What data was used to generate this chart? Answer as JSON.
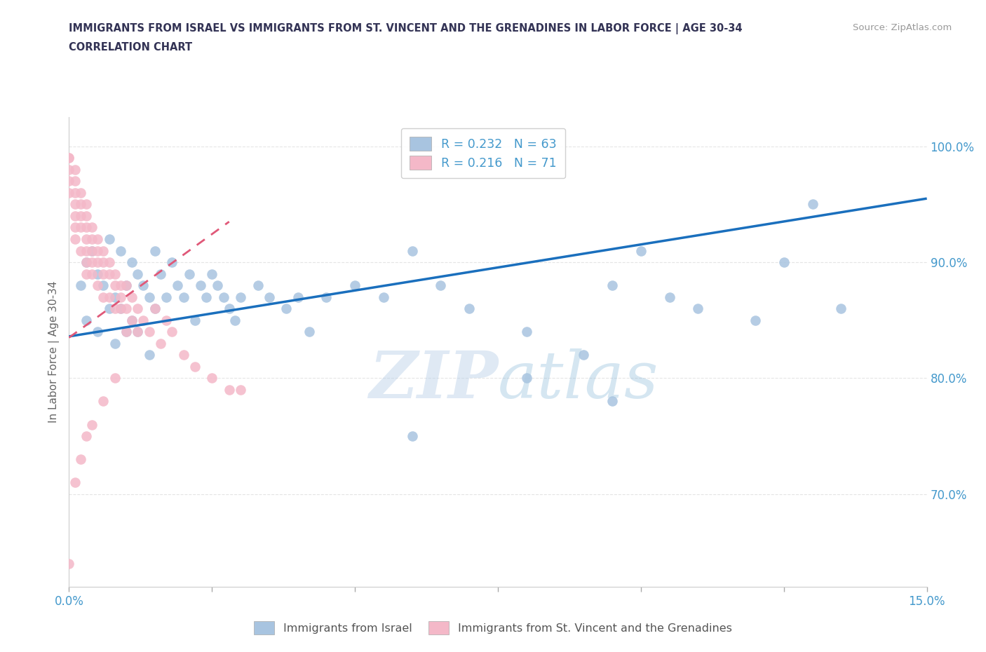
{
  "title_line1": "IMMIGRANTS FROM ISRAEL VS IMMIGRANTS FROM ST. VINCENT AND THE GRENADINES IN LABOR FORCE | AGE 30-34",
  "title_line2": "CORRELATION CHART",
  "source_text": "Source: ZipAtlas.com",
  "ylabel": "In Labor Force | Age 30-34",
  "xmin": 0.0,
  "xmax": 0.15,
  "ymin": 0.62,
  "ymax": 1.025,
  "yticks": [
    0.7,
    0.8,
    0.9,
    1.0
  ],
  "ytick_labels": [
    "70.0%",
    "80.0%",
    "90.0%",
    "100.0%"
  ],
  "legend_R1": "R = 0.232",
  "legend_N1": "N = 63",
  "legend_R2": "R = 0.216",
  "legend_N2": "N = 71",
  "color_israel": "#a8c4e0",
  "color_stvincent": "#f4b8c8",
  "trendline_israel_color": "#1a6fbd",
  "trendline_stvincent_color": "#e05878",
  "watermark_ZIP": "ZIP",
  "watermark_atlas": "atlas",
  "title_color": "#333355",
  "axis_color": "#4499cc",
  "israel_trendline_x0": 0.0,
  "israel_trendline_y0": 0.836,
  "israel_trendline_x1": 0.15,
  "israel_trendline_y1": 0.955,
  "stvincent_trendline_x0": 0.0,
  "stvincent_trendline_y0": 0.835,
  "stvincent_trendline_x1": 0.028,
  "stvincent_trendline_y1": 0.935,
  "scatter_israel_x": [
    0.002,
    0.003,
    0.003,
    0.004,
    0.005,
    0.005,
    0.006,
    0.007,
    0.007,
    0.008,
    0.008,
    0.009,
    0.009,
    0.01,
    0.01,
    0.011,
    0.011,
    0.012,
    0.012,
    0.013,
    0.014,
    0.014,
    0.015,
    0.015,
    0.016,
    0.017,
    0.018,
    0.019,
    0.02,
    0.021,
    0.022,
    0.023,
    0.024,
    0.025,
    0.026,
    0.027,
    0.028,
    0.029,
    0.03,
    0.033,
    0.035,
    0.038,
    0.04,
    0.042,
    0.045,
    0.05,
    0.055,
    0.06,
    0.065,
    0.07,
    0.08,
    0.09,
    0.095,
    0.1,
    0.105,
    0.11,
    0.12,
    0.125,
    0.13,
    0.135,
    0.095,
    0.08,
    0.06
  ],
  "scatter_israel_y": [
    0.88,
    0.9,
    0.85,
    0.91,
    0.89,
    0.84,
    0.88,
    0.92,
    0.86,
    0.87,
    0.83,
    0.91,
    0.86,
    0.88,
    0.84,
    0.9,
    0.85,
    0.89,
    0.84,
    0.88,
    0.87,
    0.82,
    0.91,
    0.86,
    0.89,
    0.87,
    0.9,
    0.88,
    0.87,
    0.89,
    0.85,
    0.88,
    0.87,
    0.89,
    0.88,
    0.87,
    0.86,
    0.85,
    0.87,
    0.88,
    0.87,
    0.86,
    0.87,
    0.84,
    0.87,
    0.88,
    0.87,
    0.91,
    0.88,
    0.86,
    0.84,
    0.82,
    0.88,
    0.91,
    0.87,
    0.86,
    0.85,
    0.9,
    0.95,
    0.86,
    0.78,
    0.8,
    0.75
  ],
  "scatter_stvincent_x": [
    0.0,
    0.0,
    0.0,
    0.0,
    0.0,
    0.001,
    0.001,
    0.001,
    0.001,
    0.001,
    0.001,
    0.001,
    0.002,
    0.002,
    0.002,
    0.002,
    0.002,
    0.003,
    0.003,
    0.003,
    0.003,
    0.003,
    0.003,
    0.003,
    0.004,
    0.004,
    0.004,
    0.004,
    0.004,
    0.005,
    0.005,
    0.005,
    0.005,
    0.006,
    0.006,
    0.006,
    0.006,
    0.007,
    0.007,
    0.007,
    0.008,
    0.008,
    0.008,
    0.009,
    0.009,
    0.009,
    0.01,
    0.01,
    0.011,
    0.011,
    0.012,
    0.012,
    0.013,
    0.014,
    0.015,
    0.016,
    0.017,
    0.018,
    0.02,
    0.022,
    0.025,
    0.028,
    0.03,
    0.01,
    0.008,
    0.006,
    0.004,
    0.003,
    0.002,
    0.001,
    0.0
  ],
  "scatter_stvincent_y": [
    0.99,
    0.99,
    0.98,
    0.97,
    0.96,
    0.98,
    0.97,
    0.96,
    0.95,
    0.94,
    0.93,
    0.92,
    0.96,
    0.95,
    0.94,
    0.93,
    0.91,
    0.95,
    0.94,
    0.93,
    0.92,
    0.91,
    0.9,
    0.89,
    0.93,
    0.92,
    0.91,
    0.9,
    0.89,
    0.92,
    0.91,
    0.9,
    0.88,
    0.91,
    0.9,
    0.89,
    0.87,
    0.9,
    0.89,
    0.87,
    0.89,
    0.88,
    0.86,
    0.88,
    0.87,
    0.86,
    0.88,
    0.86,
    0.87,
    0.85,
    0.86,
    0.84,
    0.85,
    0.84,
    0.86,
    0.83,
    0.85,
    0.84,
    0.82,
    0.81,
    0.8,
    0.79,
    0.79,
    0.84,
    0.8,
    0.78,
    0.76,
    0.75,
    0.73,
    0.71,
    0.64
  ]
}
